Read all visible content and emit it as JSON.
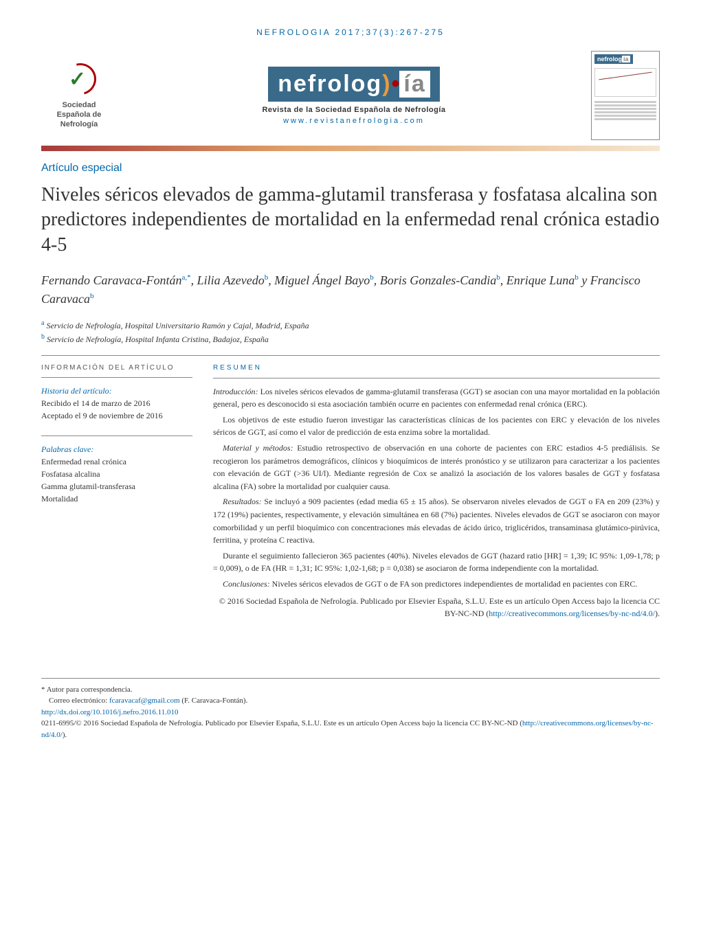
{
  "citation": "NEFROLOGIA 2017;37(3):267-275",
  "society": {
    "line1": "Sociedad",
    "line2": "Española de",
    "line3": "Nefrología"
  },
  "journal_logo": {
    "main": "nefrolog",
    "suffix": "ía",
    "subtitle": "Revista de la Sociedad Española de Nefrología",
    "url": "www.revistanefrologia.com"
  },
  "article_type": "Artículo especial",
  "title": "Niveles séricos elevados de gamma-glutamil transferasa y fosfatasa alcalina son predictores independientes de mortalidad en la enfermedad renal crónica estadio 4-5",
  "authors_html": "Fernando Caravaca-Fontán<sup>a,*</sup>, Lilia Azevedo<sup>b</sup>, Miguel Ángel Bayo<sup>b</sup>, Boris Gonzales-Candia<sup>b</sup>, Enrique Luna<sup>b</sup> y Francisco Caravaca<sup>b</sup>",
  "affiliations": [
    {
      "sup": "a",
      "text": "Servicio de Nefrología, Hospital Universitario Ramón y Cajal, Madrid, España"
    },
    {
      "sup": "b",
      "text": "Servicio de Nefrología, Hospital Infanta Cristina, Badajoz, España"
    }
  ],
  "sidebar": {
    "heading": "INFORMACIÓN DEL ARTÍCULO",
    "history_title": "Historia del artículo:",
    "received": "Recibido el 14 de marzo de 2016",
    "accepted": "Aceptado el 9 de noviembre de 2016",
    "keywords_title": "Palabras clave:",
    "keywords": [
      "Enfermedad renal crónica",
      "Fosfatasa alcalina",
      "Gamma glutamil-transferasa",
      "Mortalidad"
    ]
  },
  "abstract": {
    "heading": "RESUMEN",
    "paragraphs": [
      {
        "lead": "Introducción:",
        "text": " Los niveles séricos elevados de gamma-glutamil transferasa (GGT) se asocian con una mayor mortalidad en la población general, pero es desconocido si esta asociación también ocurre en pacientes con enfermedad renal crónica (ERC)."
      },
      {
        "lead": "",
        "text": "Los objetivos de este estudio fueron investigar las características clínicas de los pacientes con ERC y elevación de los niveles séricos de GGT, así como el valor de predicción de esta enzima sobre la mortalidad."
      },
      {
        "lead": "Material y métodos:",
        "text": " Estudio retrospectivo de observación en una cohorte de pacientes con ERC estadios 4-5 prediálisis. Se recogieron los parámetros demográficos, clínicos y bioquímicos de interés pronóstico y se utilizaron para caracterizar a los pacientes con elevación de GGT (>36 UI/l). Mediante regresión de Cox se analizó la asociación de los valores basales de GGT y fosfatasa alcalina (FA) sobre la mortalidad por cualquier causa."
      },
      {
        "lead": "Resultados:",
        "text": " Se incluyó a 909 pacientes (edad media 65 ± 15 años). Se observaron niveles elevados de GGT o FA en 209 (23%) y 172 (19%) pacientes, respectivamente, y elevación simultánea en 68 (7%) pacientes. Niveles elevados de GGT se asociaron con mayor comorbilidad y un perfil bioquímico con concentraciones más elevadas de ácido úrico, triglicéridos, transaminasa glutámico-pirúvica, ferritina, y proteína C reactiva."
      },
      {
        "lead": "",
        "text": "Durante el seguimiento fallecieron 365 pacientes (40%). Niveles elevados de GGT (hazard ratio [HR] = 1,39; IC 95%: 1,09-1,78; p = 0,009), o de FA (HR = 1,31; IC 95%: 1,02-1,68; p = 0,038) se asociaron de forma independiente con la mortalidad."
      },
      {
        "lead": "Conclusiones:",
        "text": " Niveles séricos elevados de GGT o de FA son predictores independientes de mortalidad en pacientes con ERC."
      }
    ],
    "copyright_text": "© 2016 Sociedad Española de Nefrología. Publicado por Elsevier España, S.L.U. Este es un artículo Open Access bajo la licencia CC BY-NC-ND (",
    "license_url": "http://creativecommons.org/licenses/by-nc-nd/4.0/",
    "copyright_close": ")."
  },
  "footer": {
    "corr": "* Autor para correspondencia.",
    "email_label": "Correo electrónico: ",
    "email": "fcaravacaf@gmail.com",
    "email_name": " (F. Caravaca-Fontán).",
    "doi": "http://dx.doi.org/10.1016/j.nefro.2016.11.010",
    "issn_line": "0211-6995/© 2016 Sociedad Española de Nefrología. Publicado por Elsevier España, S.L.U. Este es un artículo Open Access bajo la licencia CC BY-NC-ND (",
    "issn_url": "http://creativecommons.org/licenses/by-nc-nd/4.0/",
    "issn_close": ")."
  },
  "colors": {
    "link": "#0066aa",
    "gradient_start": "#a63a3a",
    "gradient_end": "#f5e6d0"
  }
}
